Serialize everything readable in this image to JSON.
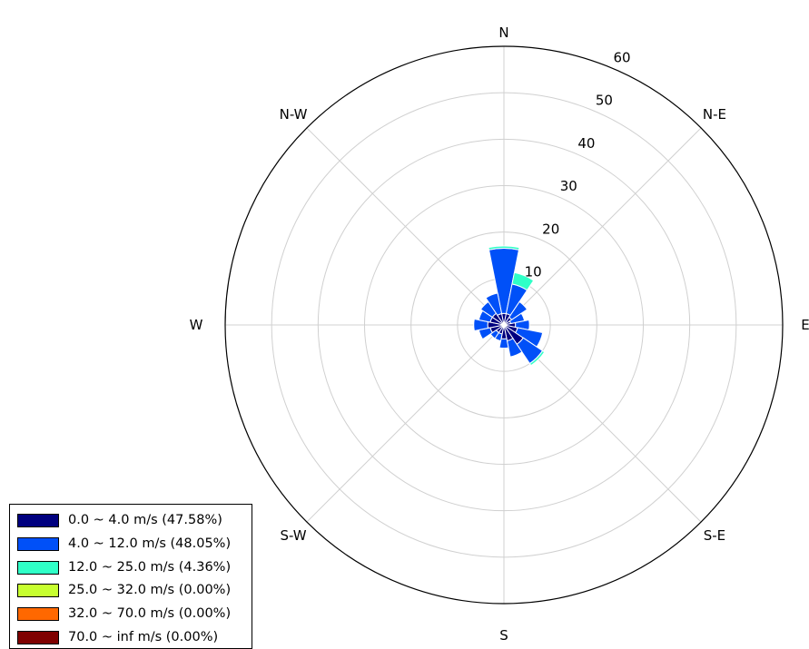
{
  "chart_data": {
    "type": "windrose",
    "directions": [
      "N",
      "NNE",
      "NE",
      "ENE",
      "E",
      "ESE",
      "SE",
      "SSE",
      "S",
      "SSW",
      "SW",
      "WSW",
      "W",
      "WNW",
      "NW",
      "NNW"
    ],
    "compass_labels": {
      "N": "N",
      "NE": "N-E",
      "E": "E",
      "SE": "S-E",
      "S": "S",
      "SW": "S-W",
      "W": "W",
      "NW": "N-W"
    },
    "radial_ticks": [
      10,
      20,
      30,
      40,
      50,
      60
    ],
    "rmax": 60,
    "grid": true,
    "legend_position": "bottom-left",
    "series": [
      {
        "name": "0.0 ~ 4.0 m/s (47.58%)",
        "color": "#00007f",
        "values": [
          2.5,
          2.5,
          2,
          1.5,
          2.5,
          3,
          5,
          3.5,
          3,
          2,
          2,
          3,
          3.5,
          3,
          3,
          2.5
        ]
      },
      {
        "name": "4.0 ~ 12.0 m/s (48.05%)",
        "color": "#0050f8",
        "values": [
          14,
          6.5,
          4,
          3,
          3,
          5.5,
          5,
          3.5,
          2,
          1.5,
          1.5,
          2.5,
          3,
          2.5,
          3,
          4.5
        ]
      },
      {
        "name": "12.0 ~ 25.0 m/s (4.36%)",
        "color": "#2fffc7",
        "values": [
          0.5,
          2.5,
          0,
          0,
          0,
          0,
          0.5,
          0,
          0,
          0,
          0,
          0,
          0,
          0,
          0,
          0
        ]
      },
      {
        "name": "25.0 ~ 32.0 m/s (0.00%)",
        "color": "#c7ff2f",
        "values": [
          0,
          0,
          0,
          0,
          0,
          0,
          0,
          0,
          0,
          0,
          0,
          0,
          0,
          0,
          0,
          0
        ]
      },
      {
        "name": "32.0 ~ 70.0 m/s (0.00%)",
        "color": "#ff6800",
        "values": [
          0,
          0,
          0,
          0,
          0,
          0,
          0,
          0,
          0,
          0,
          0,
          0,
          0,
          0,
          0,
          0
        ]
      },
      {
        "name": "70.0 ~ inf m/s (0.00%)",
        "color": "#7f0000",
        "values": [
          0,
          0,
          0,
          0,
          0,
          0,
          0,
          0,
          0,
          0,
          0,
          0,
          0,
          0,
          0,
          0
        ]
      }
    ]
  }
}
